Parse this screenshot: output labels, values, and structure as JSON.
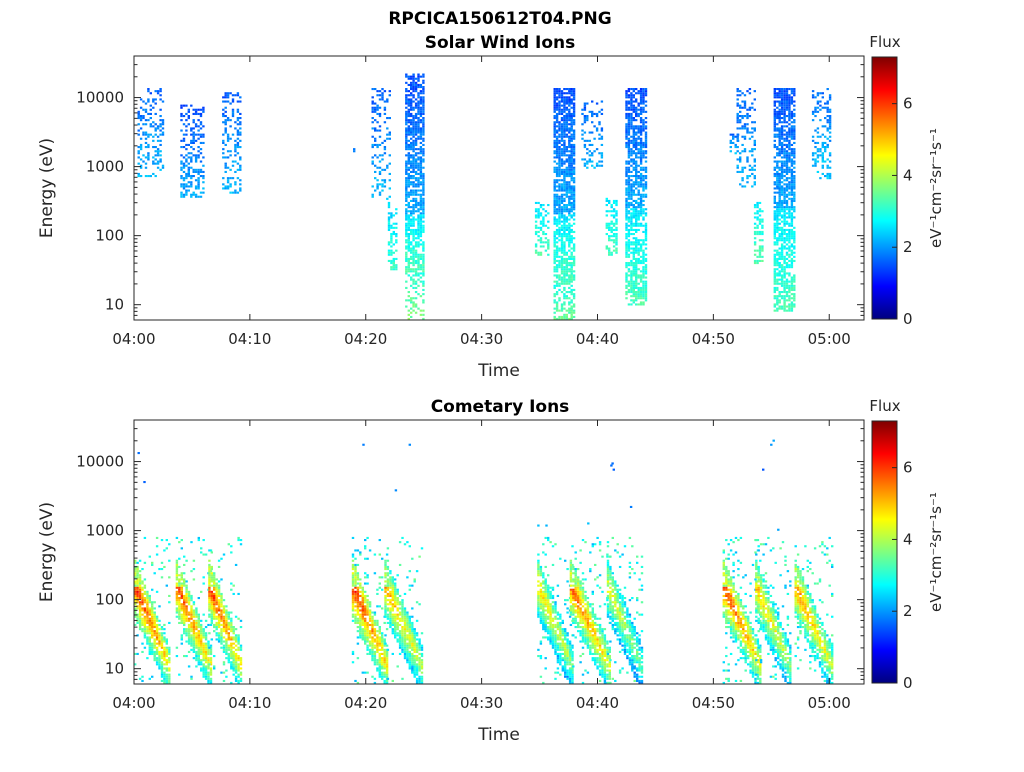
{
  "figure_title": "RPCICA150612T04.PNG",
  "colormap": [
    "#00007f",
    "#0000ff",
    "#007fff",
    "#00ffff",
    "#7fff7f",
    "#ffff00",
    "#ff7f00",
    "#ff0000",
    "#7f0000"
  ],
  "chart_data": [
    {
      "type": "heatmap",
      "title": "Solar Wind Ions",
      "xlabel": "Time",
      "ylabel": "Energy (eV)",
      "x_ticks": [
        "04:00",
        "04:10",
        "04:20",
        "04:30",
        "04:40",
        "04:50",
        "05:00"
      ],
      "x_tick_minutes": [
        0,
        10,
        20,
        30,
        40,
        50,
        60
      ],
      "xlim_minutes": [
        0,
        63
      ],
      "y_scale": "log",
      "y_ticks": [
        "10",
        "100",
        "1000",
        "10000"
      ],
      "y_tick_values": [
        10,
        100,
        1000,
        10000
      ],
      "ylim": [
        6,
        40000
      ],
      "colorbar": {
        "label": "Flux",
        "units": "eV⁻¹cm⁻²sr⁻¹s⁻¹",
        "ticks": [
          "0",
          "2",
          "4",
          "6"
        ],
        "tick_values": [
          0,
          2,
          4,
          6
        ],
        "range": [
          0,
          7.3
        ]
      },
      "blobs": [
        {
          "t0": 0.3,
          "t1": 2.6,
          "e0": 700,
          "e1": 14000,
          "v": 1.9,
          "d": 0.3
        },
        {
          "t0": 4.0,
          "t1": 6.0,
          "e0": 350,
          "e1": 8000,
          "v": 1.8,
          "d": 0.4
        },
        {
          "t0": 7.6,
          "t1": 9.1,
          "e0": 400,
          "e1": 12000,
          "v": 1.9,
          "d": 0.3
        },
        {
          "t0": 18.9,
          "t1": 19.2,
          "e0": 1500,
          "e1": 1900,
          "v": 1.9,
          "d": 0.5
        },
        {
          "t0": 20.5,
          "t1": 22.0,
          "e0": 300,
          "e1": 14000,
          "v": 1.9,
          "d": 0.3
        },
        {
          "t0": 21.9,
          "t1": 22.6,
          "e0": 30,
          "e1": 300,
          "v": 2.8,
          "d": 0.5
        },
        {
          "t0": 23.4,
          "t1": 25.0,
          "e0": 200,
          "e1": 22000,
          "v": 1.8,
          "d": 0.75
        },
        {
          "t0": 23.4,
          "t1": 25.0,
          "e0": 30,
          "e1": 200,
          "v": 2.9,
          "d": 0.7
        },
        {
          "t0": 23.4,
          "t1": 25.0,
          "e0": 6,
          "e1": 30,
          "v": 3.3,
          "d": 0.4
        },
        {
          "t0": 34.6,
          "t1": 35.8,
          "e0": 50,
          "e1": 300,
          "v": 2.9,
          "d": 0.4
        },
        {
          "t0": 36.2,
          "t1": 37.9,
          "e0": 200,
          "e1": 14000,
          "v": 1.8,
          "d": 0.75
        },
        {
          "t0": 36.2,
          "t1": 37.9,
          "e0": 20,
          "e1": 200,
          "v": 2.9,
          "d": 0.7
        },
        {
          "t0": 36.2,
          "t1": 37.9,
          "e0": 6,
          "e1": 20,
          "v": 3.2,
          "d": 0.5
        },
        {
          "t0": 38.6,
          "t1": 40.4,
          "e0": 900,
          "e1": 9000,
          "v": 1.9,
          "d": 0.3
        },
        {
          "t0": 40.7,
          "t1": 41.6,
          "e0": 50,
          "e1": 350,
          "v": 2.9,
          "d": 0.5
        },
        {
          "t0": 42.4,
          "t1": 44.1,
          "e0": 250,
          "e1": 14000,
          "v": 1.8,
          "d": 0.75
        },
        {
          "t0": 42.4,
          "t1": 44.1,
          "e0": 10,
          "e1": 250,
          "v": 2.9,
          "d": 0.7
        },
        {
          "t0": 51.4,
          "t1": 52.2,
          "e0": 1500,
          "e1": 3500,
          "v": 1.9,
          "d": 0.3
        },
        {
          "t0": 52.0,
          "t1": 53.6,
          "e0": 500,
          "e1": 14000,
          "v": 1.9,
          "d": 0.35
        },
        {
          "t0": 53.5,
          "t1": 54.3,
          "e0": 40,
          "e1": 300,
          "v": 3.0,
          "d": 0.5
        },
        {
          "t0": 55.2,
          "t1": 56.9,
          "e0": 250,
          "e1": 14000,
          "v": 1.8,
          "d": 0.75
        },
        {
          "t0": 55.2,
          "t1": 56.9,
          "e0": 8,
          "e1": 250,
          "v": 2.9,
          "d": 0.7
        },
        {
          "t0": 58.5,
          "t1": 60.0,
          "e0": 650,
          "e1": 14000,
          "v": 2.0,
          "d": 0.35
        }
      ]
    },
    {
      "type": "heatmap",
      "title": "Cometary Ions",
      "xlabel": "Time",
      "ylabel": "Energy (eV)",
      "x_ticks": [
        "04:00",
        "04:10",
        "04:20",
        "04:30",
        "04:40",
        "04:50",
        "05:00"
      ],
      "x_tick_minutes": [
        0,
        10,
        20,
        30,
        40,
        50,
        60
      ],
      "xlim_minutes": [
        0,
        63
      ],
      "y_scale": "log",
      "y_ticks": [
        "10",
        "100",
        "1000",
        "10000"
      ],
      "y_tick_values": [
        10,
        100,
        1000,
        10000
      ],
      "ylim": [
        6,
        40000
      ],
      "colorbar": {
        "label": "Flux",
        "units": "eV⁻¹cm⁻²sr⁻¹s⁻¹",
        "ticks": [
          "0",
          "2",
          "4",
          "6"
        ],
        "tick_values": [
          0,
          2,
          4,
          6
        ],
        "range": [
          0,
          7.3
        ]
      },
      "bursts": [
        {
          "t": 0.0,
          "w": 3.0,
          "peak": 6.3
        },
        {
          "t": 3.6,
          "w": 3.0,
          "peak": 6.1
        },
        {
          "t": 6.4,
          "w": 2.8,
          "peak": 6.2
        },
        {
          "t": 18.8,
          "w": 3.0,
          "peak": 6.4
        },
        {
          "t": 21.6,
          "w": 3.2,
          "peak": 5.4
        },
        {
          "t": 34.8,
          "w": 3.0,
          "peak": 5.0
        },
        {
          "t": 37.6,
          "w": 3.4,
          "peak": 5.9
        },
        {
          "t": 40.8,
          "w": 3.0,
          "peak": 4.6
        },
        {
          "t": 50.8,
          "w": 3.2,
          "peak": 6.1
        },
        {
          "t": 53.6,
          "w": 3.0,
          "peak": 5.2
        },
        {
          "t": 57.0,
          "w": 3.2,
          "peak": 5.6
        }
      ],
      "sparse": [
        {
          "t": 0.3,
          "e": 13000,
          "v": 1.7
        },
        {
          "t": 0.8,
          "e": 5000,
          "v": 1.6
        },
        {
          "t": 19.7,
          "e": 18000,
          "v": 1.8
        },
        {
          "t": 22.5,
          "e": 3800,
          "v": 1.9
        },
        {
          "t": 23.7,
          "e": 17000,
          "v": 1.9
        },
        {
          "t": 34.8,
          "e": 1150,
          "v": 2.3
        },
        {
          "t": 35.5,
          "e": 1200,
          "v": 2.2
        },
        {
          "t": 39.1,
          "e": 1250,
          "v": 2.3
        },
        {
          "t": 41.1,
          "e": 8500,
          "v": 1.7
        },
        {
          "t": 41.3,
          "e": 7800,
          "v": 1.6
        },
        {
          "t": 41.2,
          "e": 9300,
          "v": 1.7
        },
        {
          "t": 42.8,
          "e": 2200,
          "v": 1.8
        },
        {
          "t": 54.2,
          "e": 7800,
          "v": 1.5
        },
        {
          "t": 54.9,
          "e": 18000,
          "v": 2.0
        },
        {
          "t": 55.1,
          "e": 19500,
          "v": 2.1
        },
        {
          "t": 55.5,
          "e": 1050,
          "v": 2.1
        }
      ]
    }
  ]
}
